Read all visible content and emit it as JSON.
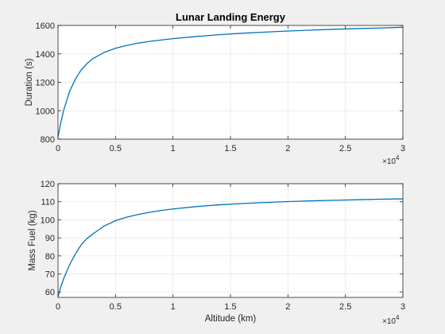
{
  "chart_data": [
    {
      "type": "line",
      "title": "Lunar Landing Energy",
      "xlabel": "",
      "ylabel": "Duration (s)",
      "xlim": [
        0,
        30000
      ],
      "ylim": [
        800,
        1600
      ],
      "xticks": [
        0,
        5000,
        10000,
        15000,
        20000,
        25000,
        30000
      ],
      "xtick_labels": [
        "0",
        "0.5",
        "1",
        "1.5",
        "2",
        "2.5",
        "3"
      ],
      "x_exponent_label": "×10",
      "x_exponent_power": "4",
      "yticks": [
        800,
        1000,
        1200,
        1400,
        1600
      ],
      "ytick_labels": [
        "800",
        "1000",
        "1200",
        "1400",
        "1600"
      ],
      "grid": true,
      "color": "#0072bd",
      "series": [
        {
          "x": [
            0,
            250,
            500,
            1000,
            1500,
            2000,
            2500,
            3000,
            4000,
            5000,
            6000,
            7000,
            8000,
            9000,
            10000,
            12000,
            14000,
            16000,
            18000,
            20000,
            22000,
            24000,
            26000,
            28000,
            30000
          ],
          "values": [
            815,
            920,
            1005,
            1135,
            1220,
            1285,
            1330,
            1365,
            1410,
            1440,
            1460,
            1476,
            1488,
            1498,
            1507,
            1522,
            1535,
            1545,
            1553,
            1561,
            1567,
            1573,
            1578,
            1582,
            1587
          ]
        }
      ]
    },
    {
      "type": "line",
      "title": "",
      "xlabel": "Altitude (km)",
      "ylabel": "Mass Fuel (kg)",
      "xlim": [
        0,
        30000
      ],
      "ylim": [
        57,
        120
      ],
      "xticks": [
        0,
        5000,
        10000,
        15000,
        20000,
        25000,
        30000
      ],
      "xtick_labels": [
        "0",
        "0.5",
        "1",
        "1.5",
        "2",
        "2.5",
        "3"
      ],
      "x_exponent_label": "×10",
      "x_exponent_power": "4",
      "yticks": [
        60,
        70,
        80,
        90,
        100,
        110,
        120
      ],
      "ytick_labels": [
        "60",
        "70",
        "80",
        "90",
        "100",
        "110",
        "120"
      ],
      "grid": true,
      "color": "#0072bd",
      "series": [
        {
          "x": [
            0,
            250,
            500,
            1000,
            1500,
            2000,
            2500,
            3000,
            4000,
            5000,
            6000,
            7000,
            8000,
            9000,
            10000,
            12000,
            14000,
            16000,
            18000,
            20000,
            22000,
            24000,
            26000,
            28000,
            30000
          ],
          "values": [
            57.5,
            63,
            67.5,
            75,
            81,
            86,
            89.5,
            92,
            96.5,
            99.5,
            101.5,
            103,
            104.2,
            105.2,
            106,
            107.3,
            108.3,
            109,
            109.6,
            110.1,
            110.5,
            110.8,
            111.1,
            111.4,
            111.6
          ]
        }
      ]
    }
  ]
}
